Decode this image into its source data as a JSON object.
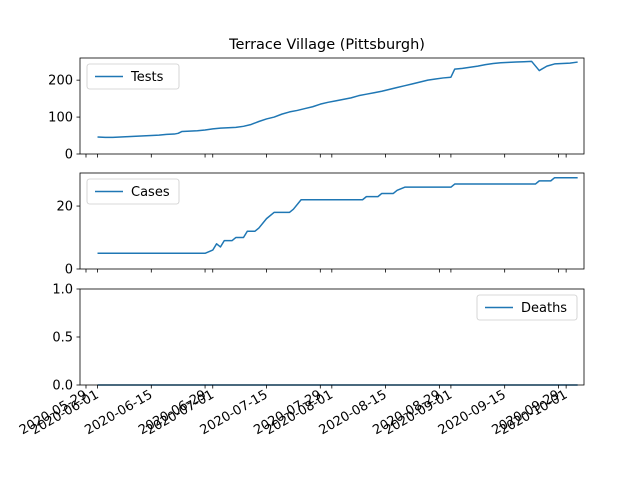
{
  "chart_data": {
    "type": "line",
    "title": "Terrace Village (Pittsburgh)",
    "line_color": "#1f77b4",
    "x_tick_labels": [
      "2020-05-29",
      "2020-06-01",
      "2020-06-15",
      "2020-06-29",
      "2020-07-01",
      "2020-07-15",
      "2020-07-29",
      "2020-08-01",
      "2020-08-15",
      "2020-08-29",
      "2020-09-01",
      "2020-09-15",
      "2020-09-29",
      "2020-10-01"
    ],
    "xlim": [
      "2020-05-29",
      "2020-10-01"
    ],
    "panels": [
      {
        "series_name": "Tests",
        "legend_loc": "upper left",
        "ylim": [
          0,
          260
        ],
        "yticks": [
          0,
          100,
          200
        ],
        "points": [
          [
            "2020-06-01",
            46
          ],
          [
            "2020-06-03",
            45
          ],
          [
            "2020-06-05",
            45
          ],
          [
            "2020-06-07",
            46
          ],
          [
            "2020-06-09",
            47
          ],
          [
            "2020-06-11",
            48
          ],
          [
            "2020-06-13",
            49
          ],
          [
            "2020-06-15",
            50
          ],
          [
            "2020-06-17",
            51
          ],
          [
            "2020-06-19",
            53
          ],
          [
            "2020-06-21",
            54
          ],
          [
            "2020-06-22",
            56
          ],
          [
            "2020-06-23",
            61
          ],
          [
            "2020-06-25",
            62
          ],
          [
            "2020-06-27",
            63
          ],
          [
            "2020-06-29",
            65
          ],
          [
            "2020-07-01",
            68
          ],
          [
            "2020-07-03",
            70
          ],
          [
            "2020-07-05",
            71
          ],
          [
            "2020-07-07",
            72
          ],
          [
            "2020-07-09",
            75
          ],
          [
            "2020-07-11",
            80
          ],
          [
            "2020-07-13",
            88
          ],
          [
            "2020-07-15",
            95
          ],
          [
            "2020-07-17",
            100
          ],
          [
            "2020-07-19",
            108
          ],
          [
            "2020-07-21",
            114
          ],
          [
            "2020-07-23",
            118
          ],
          [
            "2020-07-25",
            123
          ],
          [
            "2020-07-27",
            128
          ],
          [
            "2020-07-29",
            135
          ],
          [
            "2020-07-31",
            140
          ],
          [
            "2020-08-02",
            144
          ],
          [
            "2020-08-04",
            148
          ],
          [
            "2020-08-06",
            152
          ],
          [
            "2020-08-08",
            158
          ],
          [
            "2020-08-10",
            162
          ],
          [
            "2020-08-12",
            166
          ],
          [
            "2020-08-14",
            170
          ],
          [
            "2020-08-16",
            175
          ],
          [
            "2020-08-18",
            180
          ],
          [
            "2020-08-20",
            185
          ],
          [
            "2020-08-22",
            190
          ],
          [
            "2020-08-24",
            195
          ],
          [
            "2020-08-26",
            200
          ],
          [
            "2020-08-28",
            203
          ],
          [
            "2020-08-30",
            206
          ],
          [
            "2020-09-01",
            208
          ],
          [
            "2020-09-02",
            230
          ],
          [
            "2020-09-04",
            232
          ],
          [
            "2020-09-06",
            235
          ],
          [
            "2020-09-08",
            238
          ],
          [
            "2020-09-10",
            242
          ],
          [
            "2020-09-12",
            245
          ],
          [
            "2020-09-14",
            247
          ],
          [
            "2020-09-16",
            248
          ],
          [
            "2020-09-18",
            249
          ],
          [
            "2020-09-20",
            250
          ],
          [
            "2020-09-22",
            251
          ],
          [
            "2020-09-24",
            226
          ],
          [
            "2020-09-26",
            238
          ],
          [
            "2020-09-28",
            244
          ],
          [
            "2020-09-30",
            245
          ],
          [
            "2020-10-02",
            246
          ],
          [
            "2020-10-04",
            249
          ]
        ]
      },
      {
        "series_name": "Cases",
        "legend_loc": "upper left",
        "ylim": [
          0,
          30.5
        ],
        "yticks": [
          0,
          20
        ],
        "points": [
          [
            "2020-06-01",
            5
          ],
          [
            "2020-06-29",
            5
          ],
          [
            "2020-07-01",
            6
          ],
          [
            "2020-07-02",
            8
          ],
          [
            "2020-07-03",
            7
          ],
          [
            "2020-07-04",
            9
          ],
          [
            "2020-07-06",
            9
          ],
          [
            "2020-07-07",
            10
          ],
          [
            "2020-07-09",
            10
          ],
          [
            "2020-07-10",
            12
          ],
          [
            "2020-07-12",
            12
          ],
          [
            "2020-07-13",
            13
          ],
          [
            "2020-07-15",
            16
          ],
          [
            "2020-07-17",
            18
          ],
          [
            "2020-07-21",
            18
          ],
          [
            "2020-07-22",
            19
          ],
          [
            "2020-07-24",
            22
          ],
          [
            "2020-08-09",
            22
          ],
          [
            "2020-08-10",
            23
          ],
          [
            "2020-08-13",
            23
          ],
          [
            "2020-08-14",
            24
          ],
          [
            "2020-08-17",
            24
          ],
          [
            "2020-08-18",
            25
          ],
          [
            "2020-08-20",
            26
          ],
          [
            "2020-09-01",
            26
          ],
          [
            "2020-09-02",
            27
          ],
          [
            "2020-09-23",
            27
          ],
          [
            "2020-09-24",
            28
          ],
          [
            "2020-09-27",
            28
          ],
          [
            "2020-09-28",
            29
          ],
          [
            "2020-10-04",
            29
          ]
        ]
      },
      {
        "series_name": "Deaths",
        "legend_loc": "upper right",
        "ylim": [
          0,
          1.0
        ],
        "yticks": [
          0.0,
          0.5,
          1.0
        ],
        "ytick_labels": [
          "0.0",
          "0.5",
          "1.0"
        ],
        "points": [
          [
            "2020-06-01",
            0
          ],
          [
            "2020-10-04",
            0
          ]
        ]
      }
    ]
  }
}
